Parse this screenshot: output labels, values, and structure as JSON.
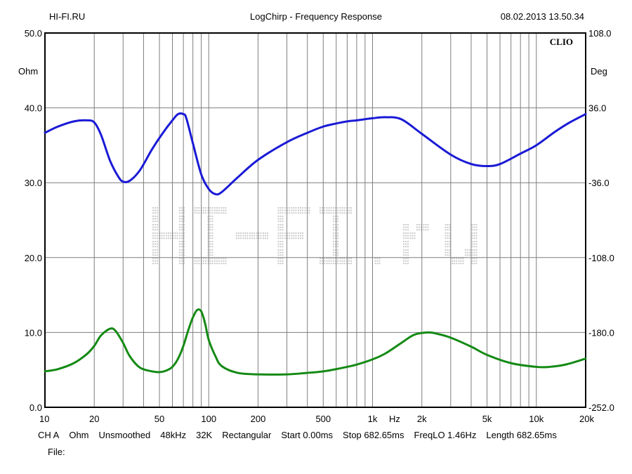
{
  "header": {
    "left": "HI-FI.RU",
    "center": "LogChirp - Frequency Response",
    "right": "08.02.2013 13.50.34"
  },
  "brand": "CLIO",
  "watermark": "HI-FI.ru",
  "info_line": [
    "CH A",
    "Ohm",
    "Unsmoothed",
    "48kHz",
    "32K",
    "Rectangular",
    "Start 0.00ms",
    "Stop 682.65ms",
    "FreqLO 1.46Hz",
    "Length 682.65ms"
  ],
  "file_label": "File:",
  "colors": {
    "magnitude": "#1a1ad6",
    "phase": "#148a14",
    "grid": "#7f7f7f",
    "watermark": "#c9c9c9"
  },
  "chart_data": {
    "type": "line",
    "title": "LogChirp - Frequency Response",
    "xscale": "log",
    "xlim": [
      10,
      20000
    ],
    "x_ticks": [
      {
        "v": 10,
        "label": "10"
      },
      {
        "v": 20,
        "label": "20"
      },
      {
        "v": 50,
        "label": "50"
      },
      {
        "v": 100,
        "label": "100"
      },
      {
        "v": 200,
        "label": "200"
      },
      {
        "v": 500,
        "label": "500"
      },
      {
        "v": 1000,
        "label": "1k"
      },
      {
        "v": 2000,
        "label": "2k"
      },
      {
        "v": 5000,
        "label": "5k"
      },
      {
        "v": 10000,
        "label": "10k"
      },
      {
        "v": 20000,
        "label": "20k"
      }
    ],
    "x_unit": "Hz",
    "y_left": {
      "unit": "Ohm",
      "lim": [
        0,
        50
      ],
      "ticks": [
        "0.0",
        "10.0",
        "20.0",
        "30.0",
        "40.0",
        "50.0"
      ]
    },
    "y_right": {
      "unit": "Deg",
      "lim": [
        -252,
        108
      ],
      "ticks": [
        "-252.0",
        "-180.0",
        "-108.0",
        "-36.0",
        "36.0",
        "108.0"
      ]
    },
    "grid": true,
    "series": [
      {
        "axis": "right",
        "color": "#1a1ad6",
        "points": [
          [
            10,
            12
          ],
          [
            12,
            18
          ],
          [
            15,
            23
          ],
          [
            18,
            24
          ],
          [
            20,
            22
          ],
          [
            22,
            10
          ],
          [
            25,
            -15
          ],
          [
            28,
            -30
          ],
          [
            30,
            -35
          ],
          [
            33,
            -34
          ],
          [
            38,
            -24
          ],
          [
            45,
            -4
          ],
          [
            52,
            11
          ],
          [
            60,
            24
          ],
          [
            65,
            30
          ],
          [
            70,
            30
          ],
          [
            73,
            26
          ],
          [
            80,
            2
          ],
          [
            90,
            -28
          ],
          [
            100,
            -42
          ],
          [
            110,
            -47
          ],
          [
            120,
            -45
          ],
          [
            150,
            -31
          ],
          [
            200,
            -14
          ],
          [
            300,
            3
          ],
          [
            400,
            12
          ],
          [
            500,
            18
          ],
          [
            600,
            21
          ],
          [
            700,
            23
          ],
          [
            800,
            24
          ],
          [
            1000,
            26
          ],
          [
            1200,
            27
          ],
          [
            1500,
            25
          ],
          [
            2000,
            11
          ],
          [
            3000,
            -9
          ],
          [
            4000,
            -18
          ],
          [
            5000,
            -20
          ],
          [
            6000,
            -18
          ],
          [
            8000,
            -8
          ],
          [
            10000,
            0
          ],
          [
            13000,
            13
          ],
          [
            16000,
            22
          ],
          [
            20000,
            30
          ]
        ]
      },
      {
        "axis": "left",
        "color": "#148a14",
        "points": [
          [
            10,
            4.8
          ],
          [
            12,
            5.1
          ],
          [
            15,
            5.9
          ],
          [
            18,
            7.1
          ],
          [
            20,
            8.2
          ],
          [
            22,
            9.6
          ],
          [
            25,
            10.5
          ],
          [
            27,
            10.2
          ],
          [
            30,
            8.6
          ],
          [
            33,
            6.8
          ],
          [
            38,
            5.3
          ],
          [
            45,
            4.8
          ],
          [
            50,
            4.7
          ],
          [
            55,
            4.9
          ],
          [
            60,
            5.4
          ],
          [
            65,
            6.5
          ],
          [
            70,
            8.2
          ],
          [
            75,
            10.3
          ],
          [
            80,
            12.0
          ],
          [
            85,
            13.0
          ],
          [
            90,
            12.8
          ],
          [
            95,
            11.2
          ],
          [
            100,
            9.0
          ],
          [
            110,
            6.8
          ],
          [
            120,
            5.5
          ],
          [
            150,
            4.6
          ],
          [
            200,
            4.4
          ],
          [
            300,
            4.4
          ],
          [
            400,
            4.6
          ],
          [
            500,
            4.8
          ],
          [
            600,
            5.1
          ],
          [
            700,
            5.4
          ],
          [
            800,
            5.7
          ],
          [
            1000,
            6.4
          ],
          [
            1200,
            7.2
          ],
          [
            1500,
            8.6
          ],
          [
            1800,
            9.7
          ],
          [
            2200,
            10.0
          ],
          [
            2500,
            9.8
          ],
          [
            3000,
            9.3
          ],
          [
            4000,
            8.1
          ],
          [
            5000,
            7.0
          ],
          [
            7000,
            5.9
          ],
          [
            10000,
            5.4
          ],
          [
            12000,
            5.4
          ],
          [
            15000,
            5.7
          ],
          [
            20000,
            6.5
          ]
        ]
      }
    ]
  }
}
